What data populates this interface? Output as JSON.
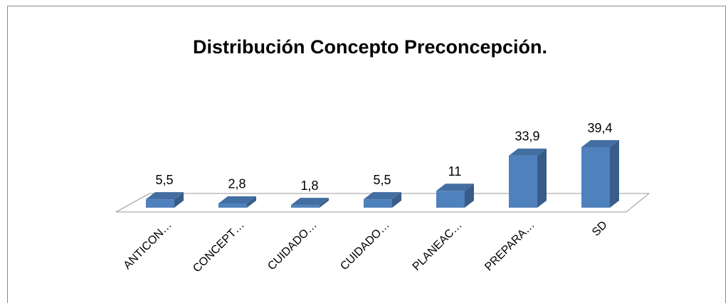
{
  "chart_data": {
    "type": "bar3d",
    "title": "Distribución Concepto Preconcepción.",
    "categories": [
      "ANTICON…",
      "CONCEPT…",
      "CUIDADO…",
      "CUIDADO…",
      "PLANEAC…",
      "PREPARA…",
      "SD"
    ],
    "values": [
      5.5,
      2.8,
      1.8,
      5.5,
      11,
      33.9,
      39.4
    ],
    "value_labels": [
      "5,5",
      "2,8",
      "1,8",
      "5,5",
      "11",
      "33,9",
      "39,4"
    ],
    "color": "#4f81bd"
  }
}
